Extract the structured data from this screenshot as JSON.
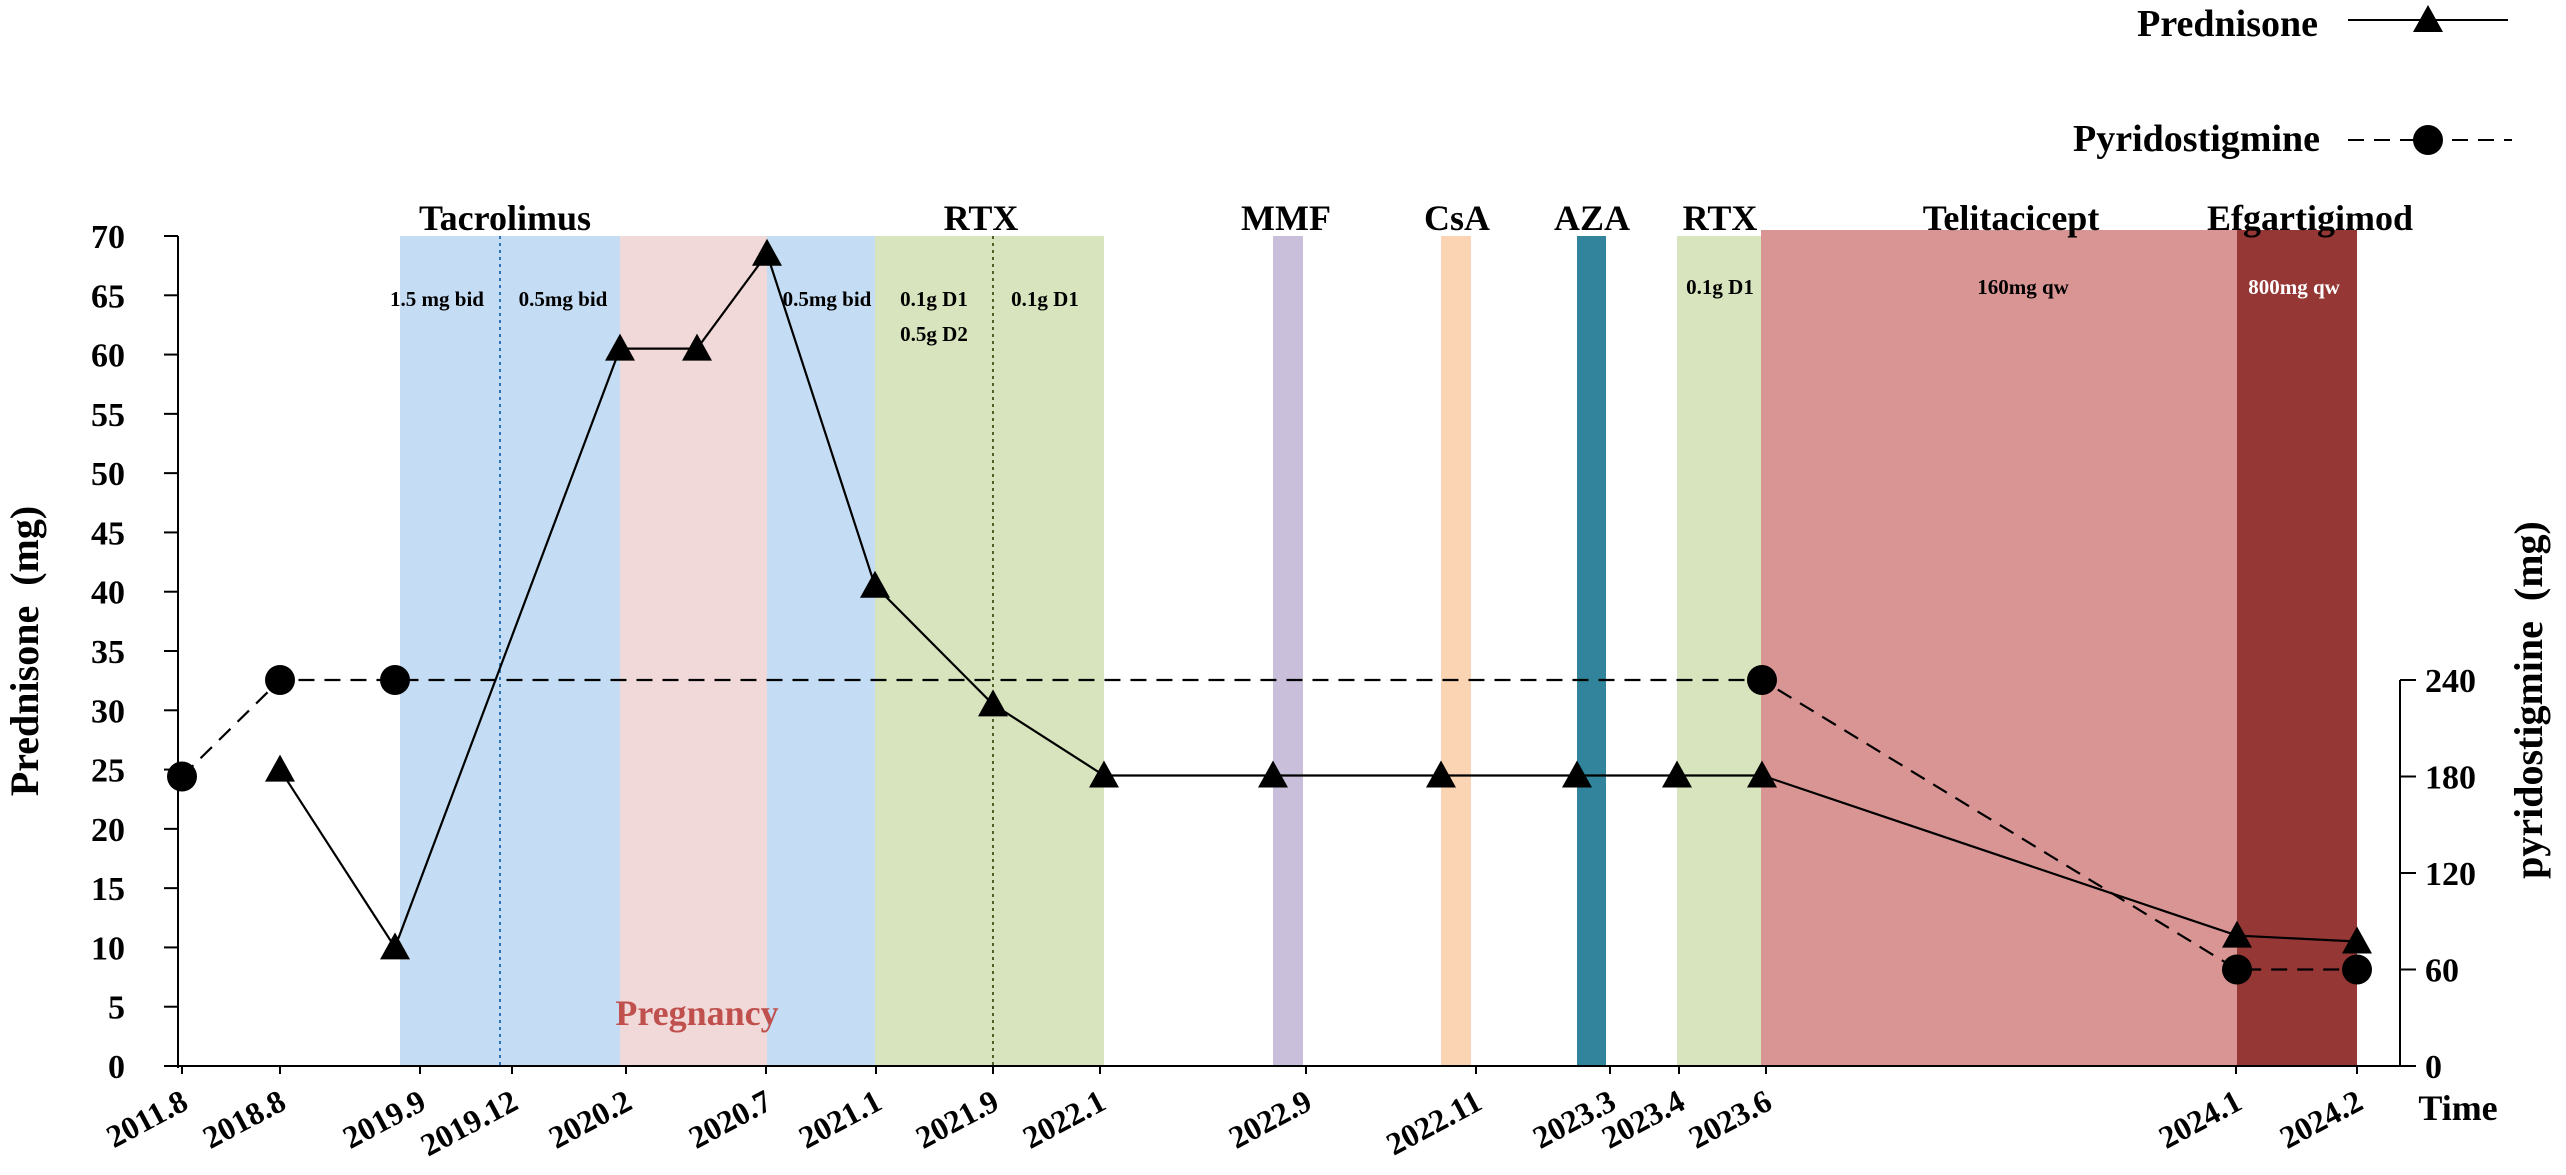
{
  "chart_data": {
    "type": "line",
    "categories": [
      "2011.8",
      "2018.8",
      "2019.9",
      "2019.12",
      "2020.2",
      "2020.7",
      "2021.1",
      "2021.9",
      "2022.1",
      "2022.9",
      "2022.11",
      "2023.3",
      "2023.4",
      "2023.6",
      "2024.1",
      "2024.2"
    ],
    "time_label": "Time",
    "y_left": {
      "label": "Prednisone  (mg)",
      "ticks": [
        0,
        5,
        10,
        15,
        20,
        25,
        30,
        35,
        40,
        45,
        50,
        55,
        60,
        65,
        70
      ],
      "range": [
        0,
        70
      ]
    },
    "y_right": {
      "label": "pyridostigmine  (mg)",
      "ticks": [
        0,
        60,
        120,
        180,
        240
      ],
      "range": [
        0,
        240
      ]
    },
    "legend": {
      "position": "top-right",
      "items": [
        {
          "name": "Prednisone",
          "style": "solid",
          "marker": "triangle"
        },
        {
          "name": "Pyridostigmine",
          "style": "dashed",
          "marker": "circle"
        }
      ]
    },
    "series": [
      {
        "name": "Prednisone",
        "axis": "left",
        "points": [
          {
            "x": "2018.8",
            "y": 25
          },
          {
            "x": "2019.9",
            "y": 10
          },
          {
            "x": "2020.2",
            "y": 60.5
          },
          {
            "x": "2020.4",
            "y": 60.5
          },
          {
            "x": "2020.7",
            "y": 68.5
          },
          {
            "x": "2021.1",
            "y": 40.5
          },
          {
            "x": "2021.9",
            "y": 30.5
          },
          {
            "x": "2022.1",
            "y": 24.5
          },
          {
            "x": "2022.9",
            "y": 24.5
          },
          {
            "x": "2022.11",
            "y": 24.5
          },
          {
            "x": "2023.3",
            "y": 24.5
          },
          {
            "x": "2023.4",
            "y": 24.5
          },
          {
            "x": "2023.6",
            "y": 24.5
          },
          {
            "x": "2024.1",
            "y": 11
          },
          {
            "x": "2024.2",
            "y": 10.5
          }
        ]
      },
      {
        "name": "Pyridostigmine",
        "axis": "right",
        "points": [
          {
            "x": "2011.8",
            "y": 180
          },
          {
            "x": "2018.8",
            "y": 240
          },
          {
            "x": "2019.9",
            "y": 240
          },
          {
            "x": "2023.6",
            "y": 240
          },
          {
            "x": "2024.1",
            "y": 60
          },
          {
            "x": "2024.2",
            "y": 60
          }
        ]
      }
    ],
    "treatment_bands": [
      {
        "name": "Tacrolimus",
        "color": "#c5ddf4"
      },
      {
        "name": "Pregnancy",
        "color": "#f1d9d9",
        "label_color": "#c0504d"
      },
      {
        "name": "RTX",
        "color": "#d7e4bd"
      },
      {
        "name": "MMF",
        "color": "#cabfdb"
      },
      {
        "name": "CsA",
        "color": "#fbd4b4"
      },
      {
        "name": "AZA",
        "color": "#31849b"
      },
      {
        "name": "RTX",
        "color": "#d7e4bd"
      },
      {
        "name": "Telitacicept",
        "color": "#d99594"
      },
      {
        "name": "Efgartigimod",
        "color": "#953735"
      }
    ],
    "dose_labels": [
      "1.5 mg bid",
      "0.5mg bid",
      "0.5mg bid",
      "0.1g D1",
      "0.5g D2",
      "0.1g D1",
      "0.1g D1",
      "160mg qw",
      "800mg qw"
    ],
    "grid": false
  }
}
